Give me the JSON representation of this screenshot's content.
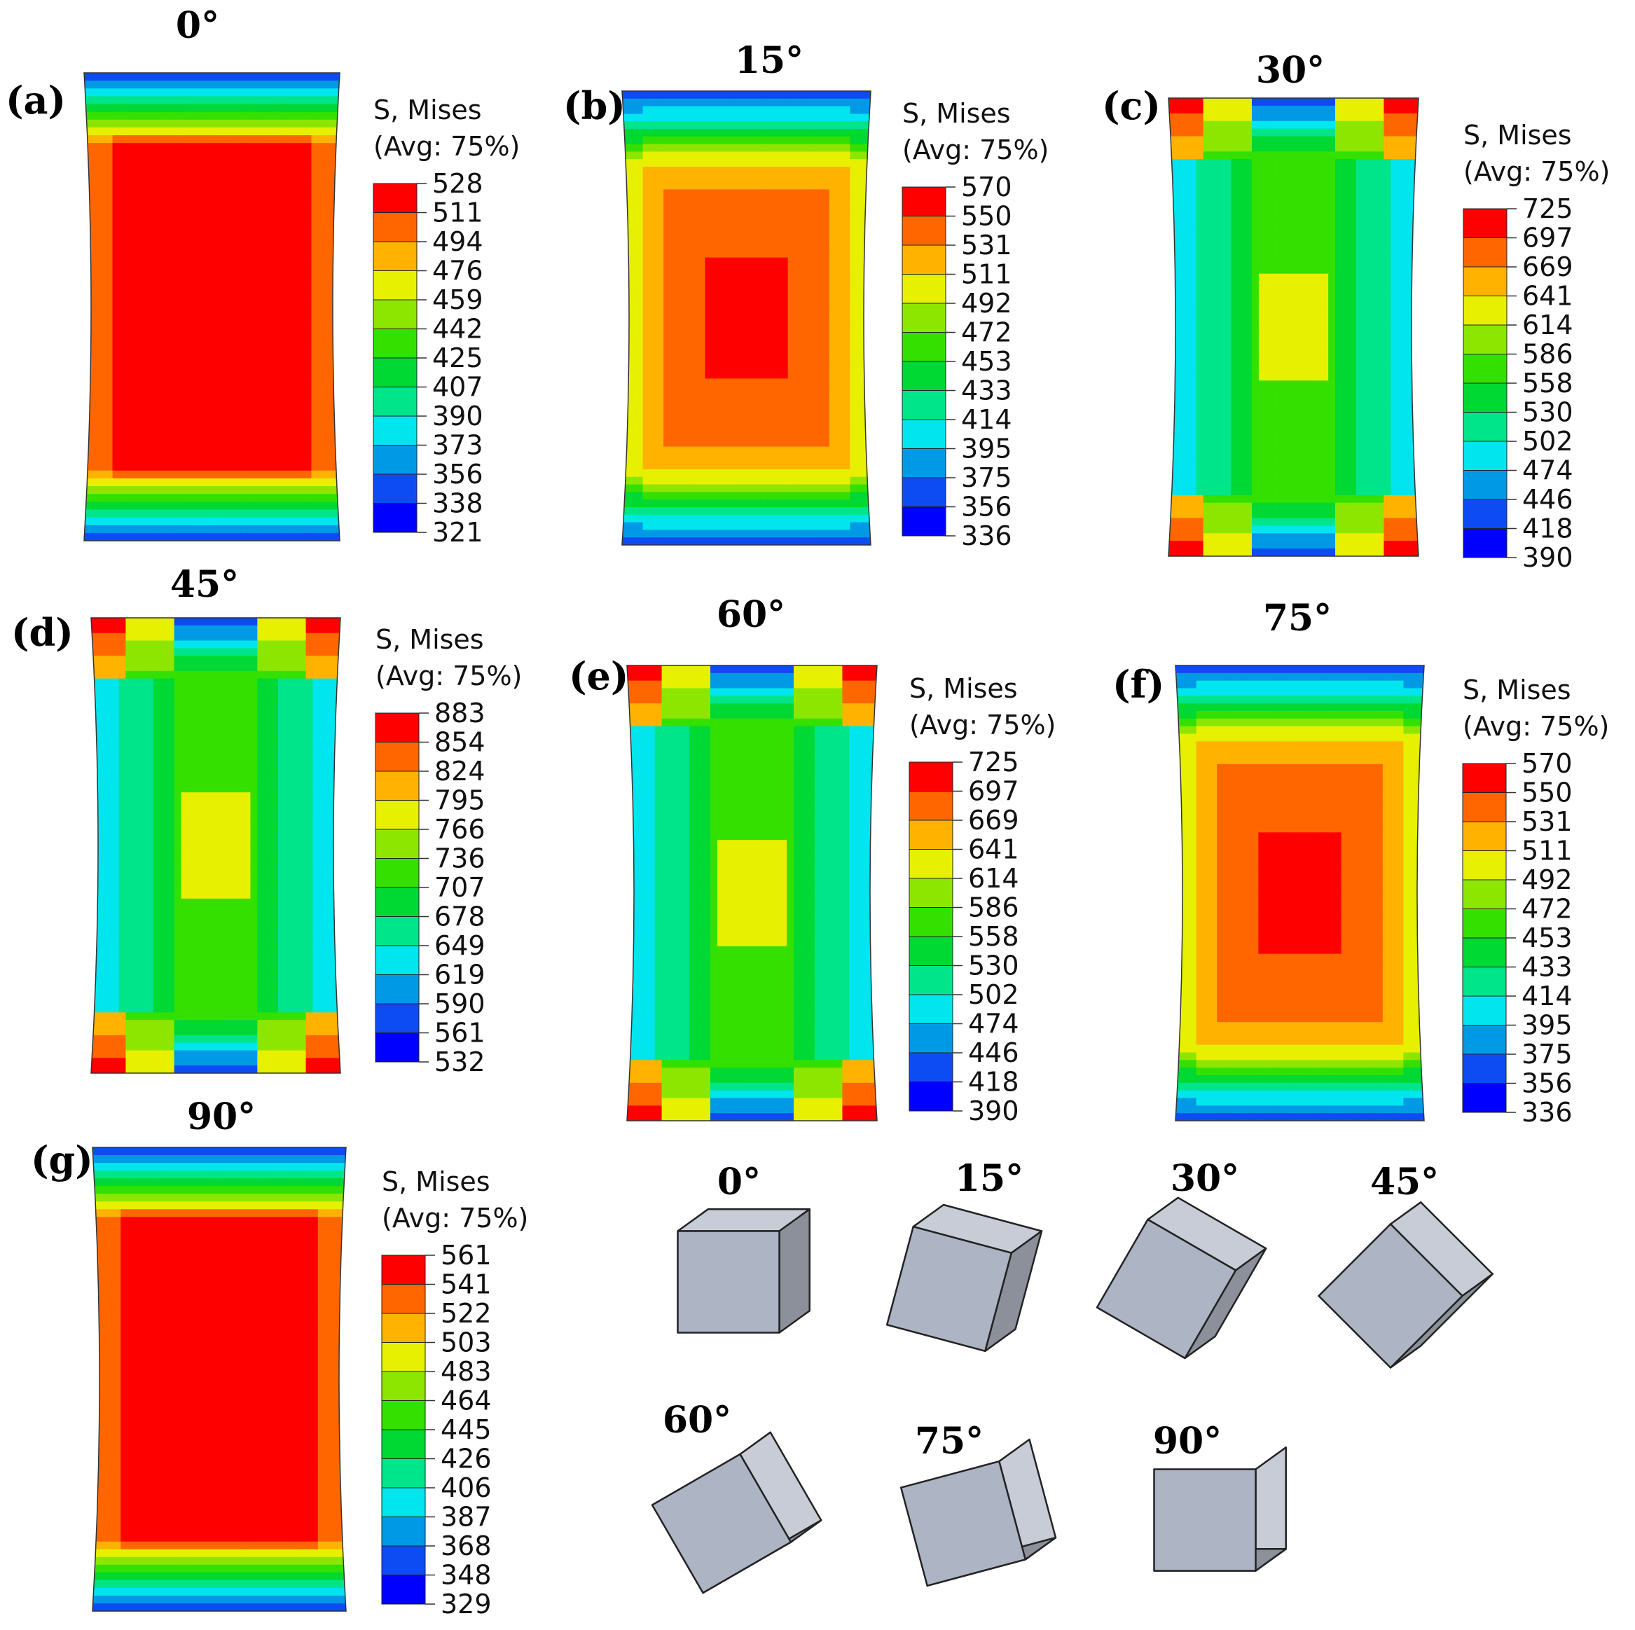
{
  "legend": {
    "title": "S, Mises",
    "subtitle": "(Avg: 75%)"
  },
  "band_colors": [
    "#0000ff",
    "#0d4cf2",
    "#0099e6",
    "#00e5ee",
    "#00e58a",
    "#00d833",
    "#33e000",
    "#8ce600",
    "#e6f000",
    "#ffb300",
    "#ff6600",
    "#ff0000"
  ],
  "panels": [
    {
      "label": "(a)",
      "angle": "0°",
      "pattern": "center_high",
      "max_band": 11,
      "ticks": [
        "528",
        "511",
        "494",
        "476",
        "459",
        "442",
        "425",
        "407",
        "390",
        "373",
        "356",
        "338",
        "321"
      ]
    },
    {
      "label": "(b)",
      "angle": "15°",
      "pattern": "center_mid",
      "max_band": 11,
      "ticks": [
        "570",
        "550",
        "531",
        "511",
        "492",
        "472",
        "453",
        "433",
        "414",
        "395",
        "375",
        "356",
        "336"
      ]
    },
    {
      "label": "(c)",
      "angle": "30°",
      "pattern": "shear",
      "max_band": 11,
      "ticks": [
        "725",
        "697",
        "669",
        "641",
        "614",
        "586",
        "558",
        "530",
        "502",
        "474",
        "446",
        "418",
        "390"
      ]
    },
    {
      "label": "(d)",
      "angle": "45°",
      "pattern": "shear",
      "max_band": 11,
      "ticks": [
        "883",
        "854",
        "824",
        "795",
        "766",
        "736",
        "707",
        "678",
        "649",
        "619",
        "590",
        "561",
        "532"
      ]
    },
    {
      "label": "(e)",
      "angle": "60°",
      "pattern": "shear",
      "max_band": 11,
      "ticks": [
        "725",
        "697",
        "669",
        "641",
        "614",
        "586",
        "558",
        "530",
        "502",
        "474",
        "446",
        "418",
        "390"
      ]
    },
    {
      "label": "(f)",
      "angle": "75°",
      "pattern": "center_mid",
      "max_band": 11,
      "ticks": [
        "570",
        "550",
        "531",
        "511",
        "492",
        "472",
        "453",
        "433",
        "414",
        "395",
        "375",
        "356",
        "336"
      ]
    },
    {
      "label": "(g)",
      "angle": "90°",
      "pattern": "center_high",
      "max_band": 11,
      "ticks": [
        "561",
        "541",
        "522",
        "503",
        "483",
        "464",
        "445",
        "426",
        "406",
        "387",
        "368",
        "348",
        "329"
      ]
    }
  ],
  "crystals": [
    {
      "angle": "0°",
      "rotation_deg": 0
    },
    {
      "angle": "15°",
      "rotation_deg": 15
    },
    {
      "angle": "30°",
      "rotation_deg": 30
    },
    {
      "angle": "45°",
      "rotation_deg": 45
    },
    {
      "angle": "60°",
      "rotation_deg": 60
    },
    {
      "angle": "75°",
      "rotation_deg": 75
    },
    {
      "angle": "90°",
      "rotation_deg": 90
    }
  ]
}
